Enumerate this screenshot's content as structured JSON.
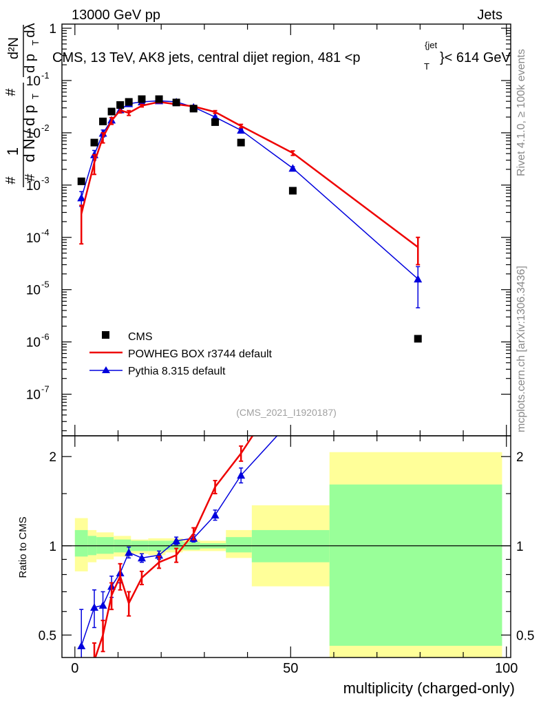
{
  "header": {
    "left": "13000 GeV pp",
    "right": "Jets"
  },
  "plot_title": {
    "prefix": "CMS, 13 TeV, AK8 jets, central dijet region, 481 <p",
    "sup": "{jet",
    "sub": "T",
    "suffix": "}< 614 GeV"
  },
  "side_text": {
    "rivet": "Rivet 4.1.0, ≥ 100k events",
    "mcplots": "mcplots.cern.ch [arXiv:1306.3436]"
  },
  "analysis_id": "(CMS_2021_I1920187)",
  "main_ylabel": {
    "frac_one": "1",
    "dN": "d N / d p",
    "T": "T",
    "hash": "#",
    "d2N": "d²N",
    "dpT_dlambda": "d p",
    "dlambda": "dλ"
  },
  "ratio_ylabel": "Ratio to CMS",
  "xlabel": "multiplicity (charged-only)",
  "colors": {
    "cms": "#000000",
    "powheg": "#ee0000",
    "pythia": "#0000dd",
    "band_inner": "#99ff99",
    "band_outer": "#ffff99"
  },
  "chart_data": [
    {
      "type": "scatter",
      "panel": "main",
      "xscale": "linear",
      "yscale": "log",
      "xlim": [
        -3,
        101
      ],
      "ylim": [
        1.6e-08,
        1.2
      ],
      "xticks": [
        0,
        50,
        100
      ],
      "yticks": [
        {
          "exp": -7,
          "label": "10",
          "sup": "-7"
        },
        {
          "exp": -6,
          "label": "10",
          "sup": "-6"
        },
        {
          "exp": -5,
          "label": "10",
          "sup": "-5"
        },
        {
          "exp": -4,
          "label": "10",
          "sup": "-4"
        },
        {
          "exp": -3,
          "label": "10",
          "sup": "-3"
        },
        {
          "exp": -2,
          "label": "10",
          "sup": "-2"
        },
        {
          "exp": -1,
          "label": "10",
          "sup": "-1"
        },
        {
          "exp": 0,
          "label": "1",
          "sup": ""
        }
      ],
      "legend_position": "bottom-left",
      "series": [
        {
          "name": "CMS",
          "kind": "markers",
          "x": [
            1.5,
            4.5,
            6.5,
            8.5,
            10.5,
            12.5,
            15.5,
            19.5,
            23.5,
            27.5,
            32.5,
            38.5,
            50.5,
            79.5
          ],
          "y": [
            0.00118,
            0.0065,
            0.0165,
            0.0255,
            0.034,
            0.039,
            0.044,
            0.044,
            0.038,
            0.029,
            0.016,
            0.0065,
            0.00078,
            1.15e-06
          ]
        },
        {
          "name": "POWHEG BOX r3744 default",
          "kind": "line",
          "x": [
            1.5,
            4.5,
            6.5,
            8.5,
            10.5,
            12.5,
            15.5,
            19.5,
            23.5,
            27.5,
            32.5,
            38.5,
            50.5,
            79.5
          ],
          "y": [
            0.00028,
            0.0027,
            0.0082,
            0.017,
            0.027,
            0.024,
            0.033,
            0.039,
            0.035,
            0.032,
            0.025,
            0.0135,
            0.0041,
            6.5e-05
          ],
          "err_lo": [
            0.000205,
            0.0011,
            0.0018,
            0.0025,
            0.003,
            0.0025,
            0.0018,
            0.0015,
            0.0012,
            0.0013,
            0.0015,
            0.001,
            0.0004,
            3.5e-05
          ],
          "err_hi": [
            0.00013,
            0.0011,
            0.0018,
            0.0025,
            0.003,
            0.0025,
            0.0018,
            0.0015,
            0.0012,
            0.0013,
            0.0015,
            0.001,
            0.0004,
            3.5e-05
          ]
        },
        {
          "name": "Pythia 8.315 default",
          "kind": "line-triangle",
          "x": [
            1.5,
            4.5,
            6.5,
            8.5,
            10.5,
            12.5,
            15.5,
            19.5,
            23.5,
            27.5,
            32.5,
            38.5,
            50.5,
            79.5
          ],
          "y": [
            0.00057,
            0.0038,
            0.0098,
            0.0175,
            0.0275,
            0.036,
            0.039,
            0.041,
            0.039,
            0.031,
            0.02,
            0.0112,
            0.0021,
            1.6e-05
          ],
          "err_lo": [
            0.00018,
            0.0008,
            0.0015,
            0.002,
            0.0025,
            0.002,
            0.0015,
            0.0012,
            0.001,
            0.001,
            0.0009,
            0.0006,
            0.00015,
            1.15e-05
          ],
          "err_hi": [
            0.00018,
            0.0008,
            0.0015,
            0.002,
            0.0025,
            0.002,
            0.0015,
            0.0012,
            0.001,
            0.001,
            0.0009,
            0.0006,
            0.00015,
            1.15e-05
          ]
        }
      ]
    },
    {
      "type": "line",
      "panel": "ratio",
      "xscale": "linear",
      "yscale": "log",
      "xlim": [
        -3,
        101
      ],
      "ylim": [
        0.42,
        2.35
      ],
      "xticks": [
        0,
        50,
        100
      ],
      "yticks": [
        0.5,
        1,
        2
      ],
      "reference_line": 1,
      "bins": [
        {
          "lo": 0,
          "hi": 3,
          "inner": [
            0.92,
            1.13
          ],
          "outer": [
            0.82,
            1.24
          ]
        },
        {
          "lo": 3,
          "hi": 5,
          "inner": [
            0.93,
            1.08
          ],
          "outer": [
            0.88,
            1.13
          ]
        },
        {
          "lo": 5,
          "hi": 9,
          "inner": [
            0.94,
            1.07
          ],
          "outer": [
            0.9,
            1.11
          ]
        },
        {
          "lo": 9,
          "hi": 13,
          "inner": [
            0.95,
            1.05
          ],
          "outer": [
            0.92,
            1.08
          ]
        },
        {
          "lo": 13,
          "hi": 17,
          "inner": [
            0.96,
            1.04
          ],
          "outer": [
            0.94,
            1.05
          ]
        },
        {
          "lo": 17,
          "hi": 21,
          "inner": [
            0.96,
            1.04
          ],
          "outer": [
            0.93,
            1.06
          ]
        },
        {
          "lo": 21,
          "hi": 25,
          "inner": [
            0.97,
            1.04
          ],
          "outer": [
            0.95,
            1.06
          ]
        },
        {
          "lo": 25,
          "hi": 29,
          "inner": [
            0.97,
            1.03
          ],
          "outer": [
            0.96,
            1.05
          ]
        },
        {
          "lo": 29,
          "hi": 35,
          "inner": [
            0.98,
            1.02
          ],
          "outer": [
            0.96,
            1.04
          ]
        },
        {
          "lo": 35,
          "hi": 41,
          "inner": [
            0.95,
            1.07
          ],
          "outer": [
            0.91,
            1.13
          ]
        },
        {
          "lo": 41,
          "hi": 59,
          "inner": [
            0.88,
            1.13
          ],
          "outer": [
            0.73,
            1.37
          ]
        },
        {
          "lo": 59,
          "hi": 99,
          "inner": [
            0.46,
            1.61
          ],
          "outer": [
            0.37,
            2.07
          ]
        }
      ],
      "series": [
        {
          "name": "POWHEG BOX r3744 default",
          "x": [
            1.5,
            4.5,
            6.5,
            8.5,
            10.5,
            12.5,
            15.5,
            19.5,
            23.5,
            27.5,
            32.5,
            38.5,
            42
          ],
          "y": [
            0.24,
            0.41,
            0.5,
            0.68,
            0.79,
            0.64,
            0.78,
            0.88,
            0.93,
            1.1,
            1.58,
            2.05,
            2.45
          ],
          "err": [
            0.05,
            0.06,
            0.06,
            0.07,
            0.08,
            0.06,
            0.04,
            0.04,
            0.05,
            0.05,
            0.08,
            0.12,
            0
          ],
          "end_marker": [
            false,
            true,
            true,
            true,
            true,
            true,
            true,
            true,
            true,
            true,
            true,
            true,
            false
          ]
        },
        {
          "name": "Pythia 8.315 default",
          "x": [
            1.5,
            4.5,
            6.5,
            8.5,
            10.5,
            12.5,
            15.5,
            19.5,
            23.5,
            27.5,
            32.5,
            38.5,
            48
          ],
          "y": [
            0.46,
            0.62,
            0.63,
            0.73,
            0.81,
            0.95,
            0.91,
            0.93,
            1.04,
            1.06,
            1.27,
            1.73,
            2.45
          ],
          "err": [
            0.15,
            0.09,
            0.07,
            0.06,
            0.06,
            0.04,
            0.03,
            0.03,
            0.03,
            0.03,
            0.05,
            0.1,
            0
          ],
          "marker": [
            true,
            true,
            true,
            true,
            true,
            true,
            true,
            true,
            true,
            true,
            true,
            true,
            false
          ]
        }
      ]
    }
  ]
}
